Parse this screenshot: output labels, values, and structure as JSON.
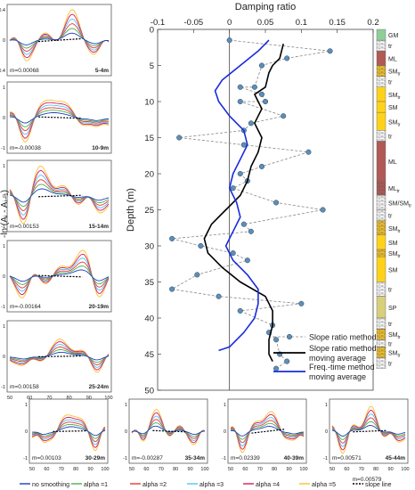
{
  "ylabel_left": "-ln (Aᵢ - Aᵢ₋₁)",
  "colors": {
    "no_smoothing": "#1f3fbf",
    "alpha1": "#4caf50",
    "alpha2": "#e53935",
    "alpha3": "#4fc3f7",
    "alpha4": "#d81b60",
    "alpha5": "#fbc02d",
    "slope": "#000000",
    "dots": "#5b8fb9",
    "freq": "#1a2bdc"
  },
  "legend_bottom": [
    "no smoothing",
    "alpha =1",
    "alpha =2",
    "alpha =3",
    "alpha =4",
    "alpha =5",
    "slope line"
  ],
  "chart_data": [
    {
      "type": "line",
      "title": "",
      "xlabel": "Damping ratio",
      "ylabel": "Depth (m)",
      "xlim": [
        -0.1,
        0.2
      ],
      "ylim": [
        50,
        0
      ],
      "xticks": [
        "-0.1",
        "-0.05",
        "0",
        "0.05",
        "0.1",
        "0.15",
        "0.2"
      ],
      "yticks": [
        "0",
        "5",
        "10",
        "15",
        "20",
        "25",
        "30",
        "35",
        "40",
        "45",
        "50"
      ],
      "series": [
        {
          "name": "Slope ratio method",
          "style": "dots-dashed",
          "points": [
            [
              0.0,
              1.5
            ],
            [
              0.14,
              3
            ],
            [
              0.08,
              4
            ],
            [
              0.045,
              5
            ],
            [
              0.035,
              8
            ],
            [
              0.015,
              8
            ],
            [
              0.045,
              9
            ],
            [
              0.05,
              10
            ],
            [
              0.015,
              10
            ],
            [
              0.075,
              12
            ],
            [
              0.03,
              13
            ],
            [
              0.02,
              14
            ],
            [
              -0.07,
              15
            ],
            [
              0.02,
              16
            ],
            [
              0.11,
              17
            ],
            [
              0.045,
              19
            ],
            [
              0.015,
              20
            ],
            [
              0.025,
              21
            ],
            [
              0.005,
              22
            ],
            [
              0.065,
              24
            ],
            [
              0.13,
              25
            ],
            [
              0.02,
              27
            ],
            [
              0.03,
              28
            ],
            [
              -0.08,
              29
            ],
            [
              -0.04,
              30
            ],
            [
              0.005,
              31
            ],
            [
              0.025,
              32
            ],
            [
              -0.045,
              34
            ],
            [
              -0.08,
              36
            ],
            [
              -0.015,
              37
            ],
            [
              0.1,
              38
            ],
            [
              0.015,
              39
            ],
            [
              0.06,
              41
            ],
            [
              0.055,
              42
            ],
            [
              0.065,
              43
            ],
            [
              0.07,
              45
            ],
            [
              0.08,
              46
            ],
            [
              0.065,
              47
            ]
          ]
        },
        {
          "name": "Slope ratio method moving average",
          "style": "line-black",
          "points": [
            [
              0.075,
              2
            ],
            [
              0.07,
              4
            ],
            [
              0.06,
              5
            ],
            [
              0.055,
              6
            ],
            [
              0.05,
              8
            ],
            [
              0.035,
              9
            ],
            [
              0.04,
              10
            ],
            [
              0.045,
              11
            ],
            [
              0.04,
              12
            ],
            [
              0.035,
              13
            ],
            [
              0.045,
              15
            ],
            [
              0.04,
              17
            ],
            [
              0.03,
              19
            ],
            [
              0.025,
              21
            ],
            [
              0.015,
              23
            ],
            [
              -0.005,
              25
            ],
            [
              -0.025,
              27
            ],
            [
              -0.035,
              29
            ],
            [
              -0.03,
              31
            ],
            [
              -0.01,
              33
            ],
            [
              0.015,
              35
            ],
            [
              0.05,
              37
            ],
            [
              0.06,
              39
            ],
            [
              0.06,
              41
            ],
            [
              0.055,
              43
            ],
            [
              0.055,
              45
            ],
            [
              0.06,
              46
            ]
          ]
        },
        {
          "name": "Freq.-time method moving average",
          "style": "line-blue",
          "points": [
            [
              0.055,
              1.5
            ],
            [
              0.04,
              3
            ],
            [
              0.015,
              5
            ],
            [
              -0.01,
              7
            ],
            [
              -0.02,
              8.5
            ],
            [
              -0.015,
              10
            ],
            [
              0.0,
              12
            ],
            [
              0.02,
              14
            ],
            [
              0.025,
              16
            ],
            [
              0.015,
              18
            ],
            [
              0.005,
              20
            ],
            [
              0.0,
              22
            ],
            [
              0.01,
              24
            ],
            [
              0.015,
              26
            ],
            [
              0.005,
              28
            ],
            [
              -0.005,
              30
            ],
            [
              0.005,
              32
            ],
            [
              0.025,
              34
            ],
            [
              0.04,
              36
            ],
            [
              0.04,
              38
            ],
            [
              0.035,
              40
            ],
            [
              0.02,
              42
            ],
            [
              0.0,
              44
            ],
            [
              -0.015,
              44.5
            ]
          ]
        }
      ],
      "legend": [
        "Slope ratio method",
        "Slope ratio method moving average",
        "Freq.-time method moving average"
      ],
      "legend_position": "bottom-right"
    }
  ],
  "strata": [
    {
      "label": "GM",
      "from": 0,
      "to": 1.5,
      "color": "#8ecf98",
      "hatch": false
    },
    {
      "label": "tr",
      "from": 1.5,
      "to": 3,
      "color": "#ffffff",
      "hatch": true
    },
    {
      "label": "ML",
      "from": 3,
      "to": 5,
      "color": "#b15a55",
      "hatch": false
    },
    {
      "label": "SM",
      "sub": "tr",
      "from": 5,
      "to": 6.5,
      "color": "#f4c32a",
      "hatch": true
    },
    {
      "label": "tr",
      "from": 6.5,
      "to": 8,
      "color": "#ffffff",
      "hatch": true
    },
    {
      "label": "SM",
      "sub": "tr",
      "from": 8,
      "to": 10,
      "color": "#ffd21a",
      "hatch": false
    },
    {
      "label": "SM",
      "from": 10,
      "to": 11.5,
      "color": "#ffd21a",
      "hatch": false
    },
    {
      "label": "SM",
      "sub": "tr",
      "from": 11.5,
      "to": 14,
      "color": "#ffd21a",
      "hatch": false
    },
    {
      "label": "tr",
      "from": 14,
      "to": 15.5,
      "color": "#ffffff",
      "hatch": true
    },
    {
      "label": "ML",
      "from": 15.5,
      "to": 21,
      "color": "#b15a55",
      "hatch": false
    },
    {
      "label": "ML",
      "sub": "tr",
      "from": 21,
      "to": 23,
      "color": "#b15a55",
      "hatch": true
    },
    {
      "label": "SM/SM",
      "sub": "tr",
      "from": 23,
      "to": 25,
      "color": "#ffffff",
      "hatch": true
    },
    {
      "label": "tr",
      "from": 25,
      "to": 26.5,
      "color": "#ffffff",
      "hatch": true
    },
    {
      "label": "SM",
      "sub": "tr",
      "from": 26.5,
      "to": 28.5,
      "color": "#f4c32a",
      "hatch": true
    },
    {
      "label": "SM",
      "from": 28.5,
      "to": 30.5,
      "color": "#ffd21a",
      "hatch": false
    },
    {
      "label": "SM",
      "sub": "tr",
      "from": 30.5,
      "to": 31.5,
      "color": "#f4c32a",
      "hatch": true
    },
    {
      "label": "SM",
      "from": 31.5,
      "to": 35,
      "color": "#ffd21a",
      "hatch": false
    },
    {
      "label": "tr",
      "from": 35,
      "to": 37,
      "color": "#ffffff",
      "hatch": true
    },
    {
      "label": "SP",
      "from": 37,
      "to": 40,
      "color": "#d8cf7a",
      "hatch": false
    },
    {
      "label": "tr",
      "from": 40,
      "to": 41.5,
      "color": "#ffffff",
      "hatch": true
    },
    {
      "label": "SM",
      "sub": "tr",
      "from": 41.5,
      "to": 43,
      "color": "#f4c32a",
      "hatch": true
    },
    {
      "label": "tr",
      "from": 43,
      "to": 44,
      "color": "#ffffff",
      "hatch": true
    },
    {
      "label": "SM",
      "sub": "tr",
      "from": 44,
      "to": 45.5,
      "color": "#f4c32a",
      "hatch": true
    },
    {
      "label": "tr",
      "from": 45.5,
      "to": 47,
      "color": "#ffffff",
      "hatch": true
    }
  ],
  "small_panels": [
    {
      "id": "5-4m",
      "m": "m=0.00068",
      "label": "5-4m",
      "amp": 1.0,
      "peak": 0.62,
      "slope": 0.2
    },
    {
      "id": "10-9m",
      "m": "m=-0.00038",
      "label": "10-9m",
      "amp": 1.0,
      "peak": 0.45,
      "slope": -0.1
    },
    {
      "id": "15-14m",
      "m": "m=0.00153",
      "label": "15-14m",
      "amp": 1.2,
      "peak": 0.35,
      "slope": 0.1
    },
    {
      "id": "20-19m",
      "m": "m=-0.00164",
      "label": "20-19m",
      "amp": 1.1,
      "peak": 0.7,
      "slope": -0.1
    },
    {
      "id": "25-24m",
      "m": "m=0.00158",
      "label": "25-24m",
      "amp": 0.7,
      "peak": 0.55,
      "slope": 0.05
    },
    {
      "id": "30-29m",
      "m": "m=0.00103",
      "label": "30-29m",
      "amp": 1.0,
      "peak": 0.55,
      "slope": 0.05
    },
    {
      "id": "35-34m",
      "m": "m=-0.00287",
      "label": "35-34m",
      "amp": 0.9,
      "peak": 0.3,
      "slope": -0.1
    },
    {
      "id": "40-39m",
      "m": "m=0.02339",
      "label": "40-39m",
      "amp": 1.0,
      "peak": 0.5,
      "slope": 0.3
    },
    {
      "id": "45-44m",
      "m": "m=0.00571",
      "m2": "m=0.00579",
      "label": "45-44m",
      "amp": 1.0,
      "peak": 0.5,
      "slope": 0.1
    }
  ],
  "panel_yticks": [
    "1",
    "0",
    "-1"
  ],
  "panel_yticks_alt": [
    "0.4",
    "0",
    "-0.4"
  ],
  "panel_xticks": [
    "50",
    "60",
    "70",
    "80",
    "90",
    "100"
  ]
}
